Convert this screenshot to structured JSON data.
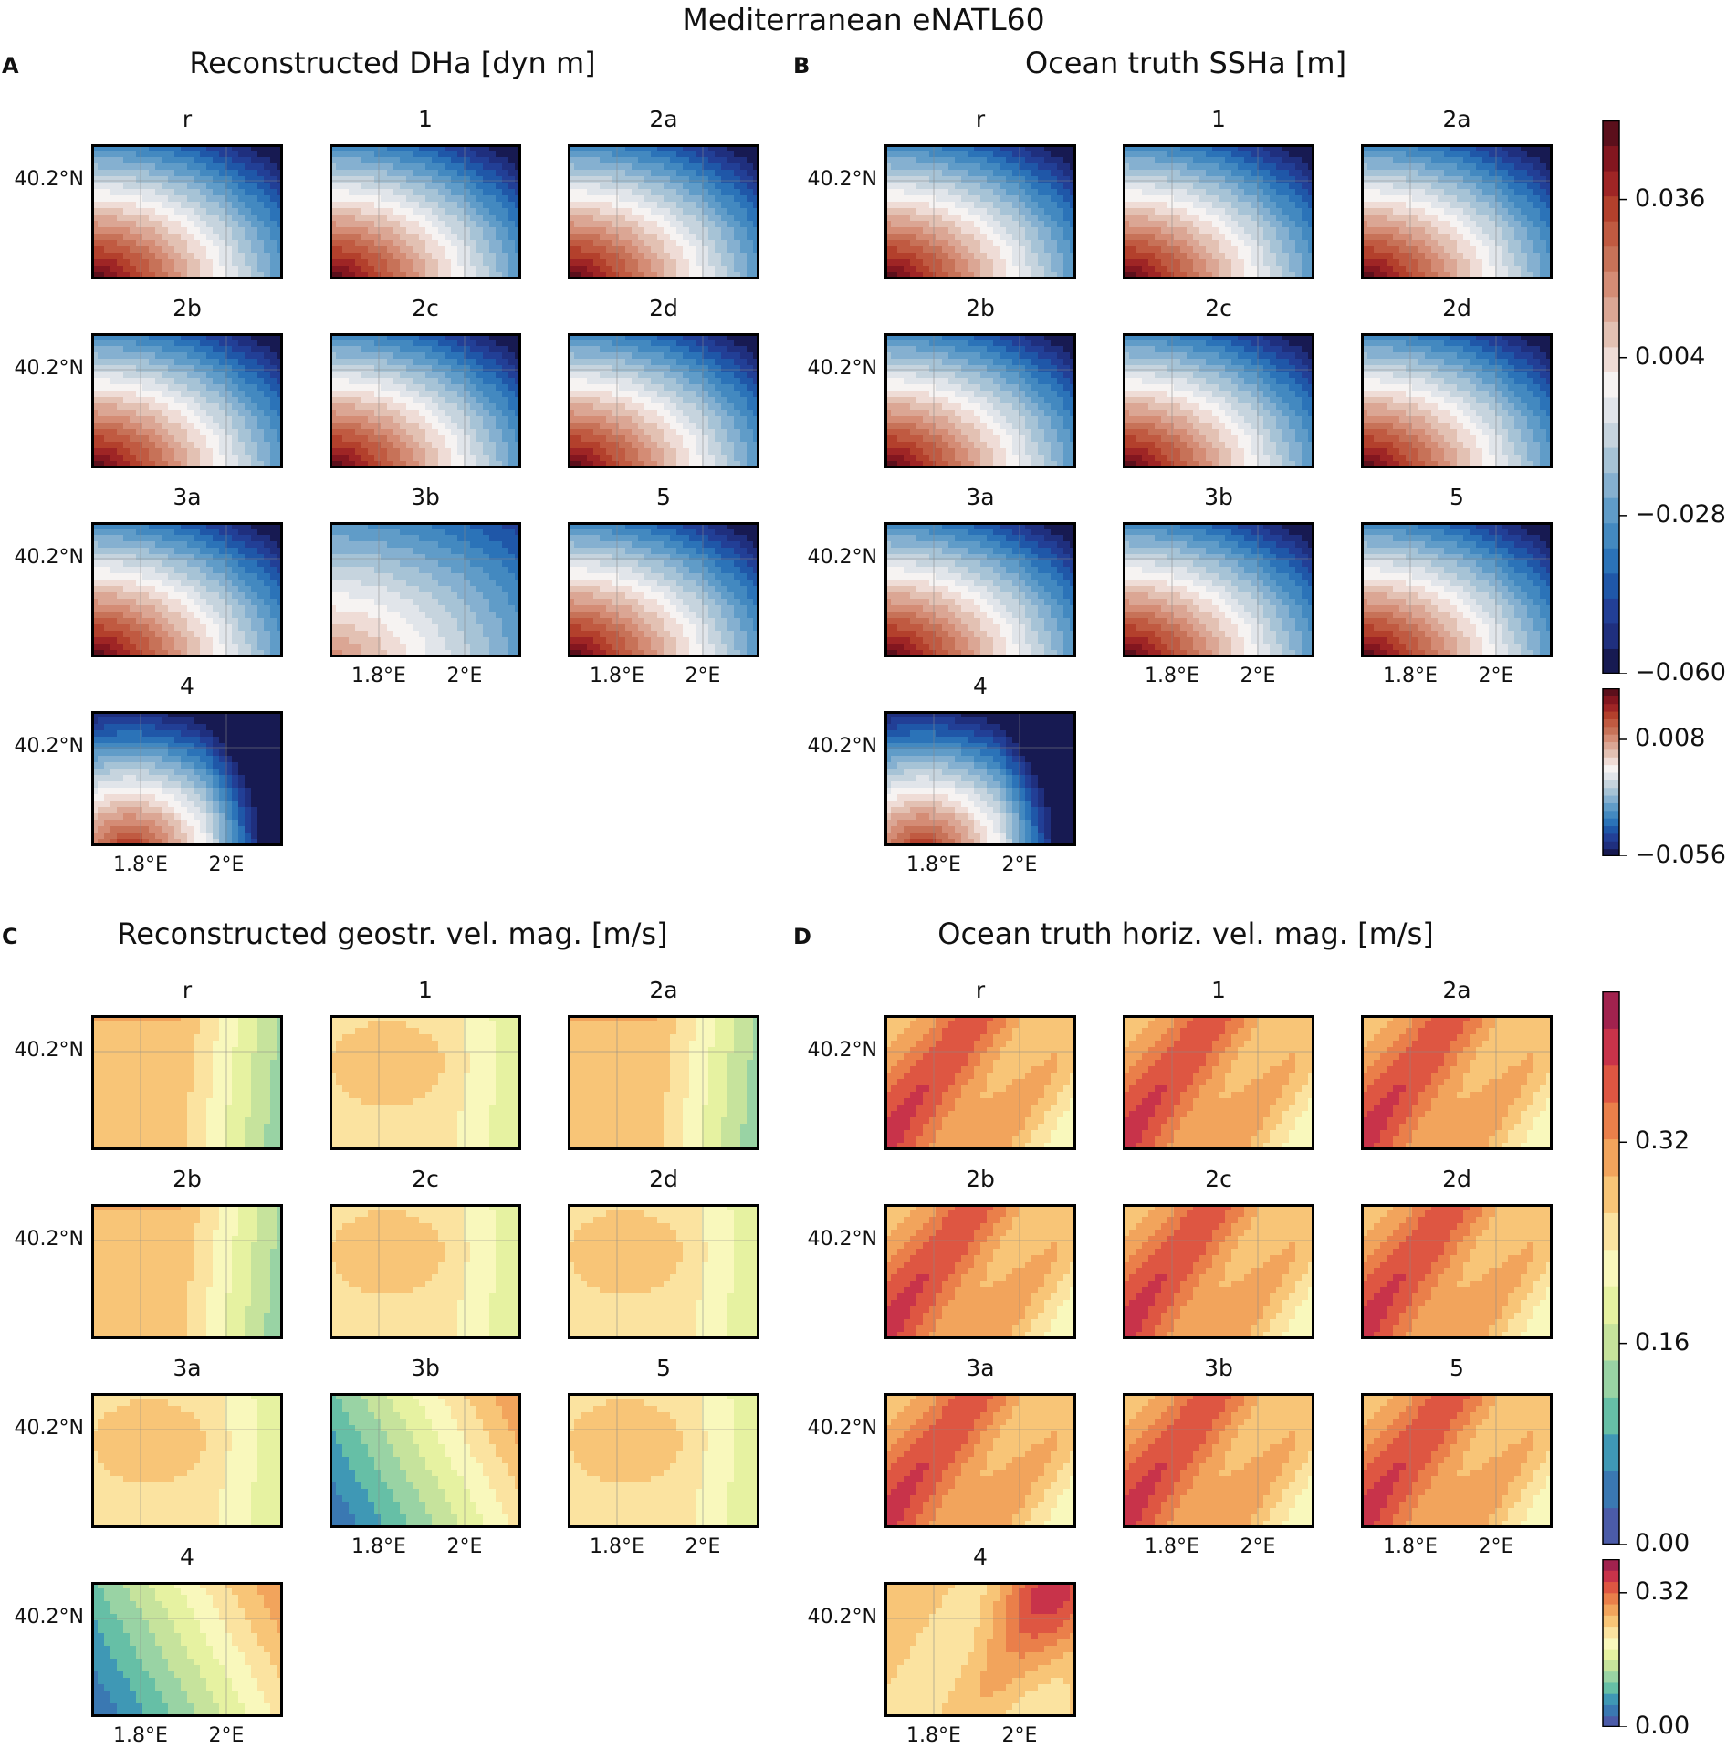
{
  "figure_title": "Mediterranean eNATL60",
  "colors": {
    "ssh_scale": [
      "#171a52",
      "#1f2f7e",
      "#223f96",
      "#1f57a8",
      "#2b73b8",
      "#4389c0",
      "#609cc8",
      "#85b0d0",
      "#a6c3d6",
      "#c6d4de",
      "#e1e5ea",
      "#f6f3f2",
      "#efdcd6",
      "#e3c1b3",
      "#dba694",
      "#d48c75",
      "#c77258",
      "#c05a41",
      "#b3402c",
      "#9f2525",
      "#83161f",
      "#5b0f1b"
    ],
    "vel_scale": [
      "#4b5ba8",
      "#3a78b2",
      "#3f98b5",
      "#66bfa6",
      "#99d3a4",
      "#c6e39c",
      "#e6f2a1",
      "#f9f8bc",
      "#fbe3a0",
      "#f8c577",
      "#f2a45c",
      "#ea7f4a",
      "#de5642",
      "#c8334a",
      "#a1224e"
    ]
  },
  "chart_data": [
    {
      "id": "A",
      "type": "contour-grid",
      "title": "Reconstructed DHa [dyn m]",
      "subplots": [
        "r",
        "1",
        "2a",
        "2b",
        "2c",
        "2d",
        "3a",
        "3b",
        "5",
        "4"
      ],
      "ylabel_tick": "40.2°N",
      "xticks": [
        "1.8°E",
        "2°E"
      ]
    },
    {
      "id": "B",
      "type": "contour-grid",
      "title": "Ocean truth SSHa [m]",
      "subplots": [
        "r",
        "1",
        "2a",
        "2b",
        "2c",
        "2d",
        "3a",
        "3b",
        "5",
        "4"
      ],
      "ylabel_tick": "40.2°N",
      "xticks": [
        "1.8°E",
        "2°E"
      ],
      "colorbar_main": {
        "ticks": [
          0.036,
          0.004,
          -0.028,
          -0.06
        ],
        "tick_labels": [
          "0.036",
          "0.004",
          "−0.028",
          "−0.060"
        ],
        "range": [
          -0.06,
          0.052
        ]
      },
      "colorbar_secondary": {
        "ticks": [
          0.008,
          -0.056
        ],
        "tick_labels": [
          "0.008",
          "−0.056"
        ],
        "range": [
          -0.056,
          0.036
        ]
      }
    },
    {
      "id": "C",
      "type": "contour-grid",
      "title": "Reconstructed geostr. vel. mag. [m/s]",
      "subplots": [
        "r",
        "1",
        "2a",
        "2b",
        "2c",
        "2d",
        "3a",
        "3b",
        "5",
        "4"
      ],
      "ylabel_tick": "40.2°N",
      "xticks": [
        "1.8°E",
        "2°E"
      ]
    },
    {
      "id": "D",
      "type": "contour-grid",
      "title": "Ocean truth horiz. vel. mag. [m/s]",
      "subplots": [
        "r",
        "1",
        "2a",
        "2b",
        "2c",
        "2d",
        "3a",
        "3b",
        "5",
        "4"
      ],
      "ylabel_tick": "40.2°N",
      "xticks": [
        "1.8°E",
        "2°E"
      ],
      "colorbar_main": {
        "ticks": [
          0.32,
          0.16,
          0.0
        ],
        "tick_labels": [
          "0.32",
          "0.16",
          "0.00"
        ],
        "range": [
          0.0,
          0.44
        ]
      },
      "colorbar_secondary": {
        "ticks": [
          0.32,
          0.0
        ],
        "tick_labels": [
          "0.32",
          "0.00"
        ],
        "range": [
          0.0,
          0.4
        ]
      }
    }
  ]
}
